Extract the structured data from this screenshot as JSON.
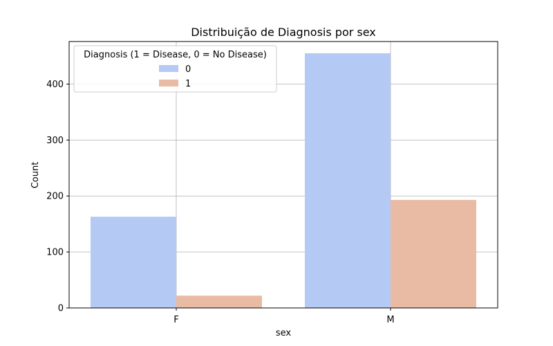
{
  "chart_data": {
    "type": "bar",
    "title": "Distribuição de Diagnosis por sex",
    "xlabel": "sex",
    "ylabel": "Count",
    "categories": [
      "F",
      "M"
    ],
    "series": [
      {
        "name": "0",
        "values": [
          163,
          455
        ],
        "color": "#b4c9f3"
      },
      {
        "name": "1",
        "values": [
          22,
          193
        ],
        "color": "#eabba4"
      }
    ],
    "ylim": [
      0,
      476
    ],
    "yticks": [
      0,
      100,
      200,
      300,
      400
    ],
    "grid": true,
    "legend": {
      "title": "Diagnosis (1 = Disease, 0 = No Disease)",
      "placement": "top-left"
    }
  }
}
